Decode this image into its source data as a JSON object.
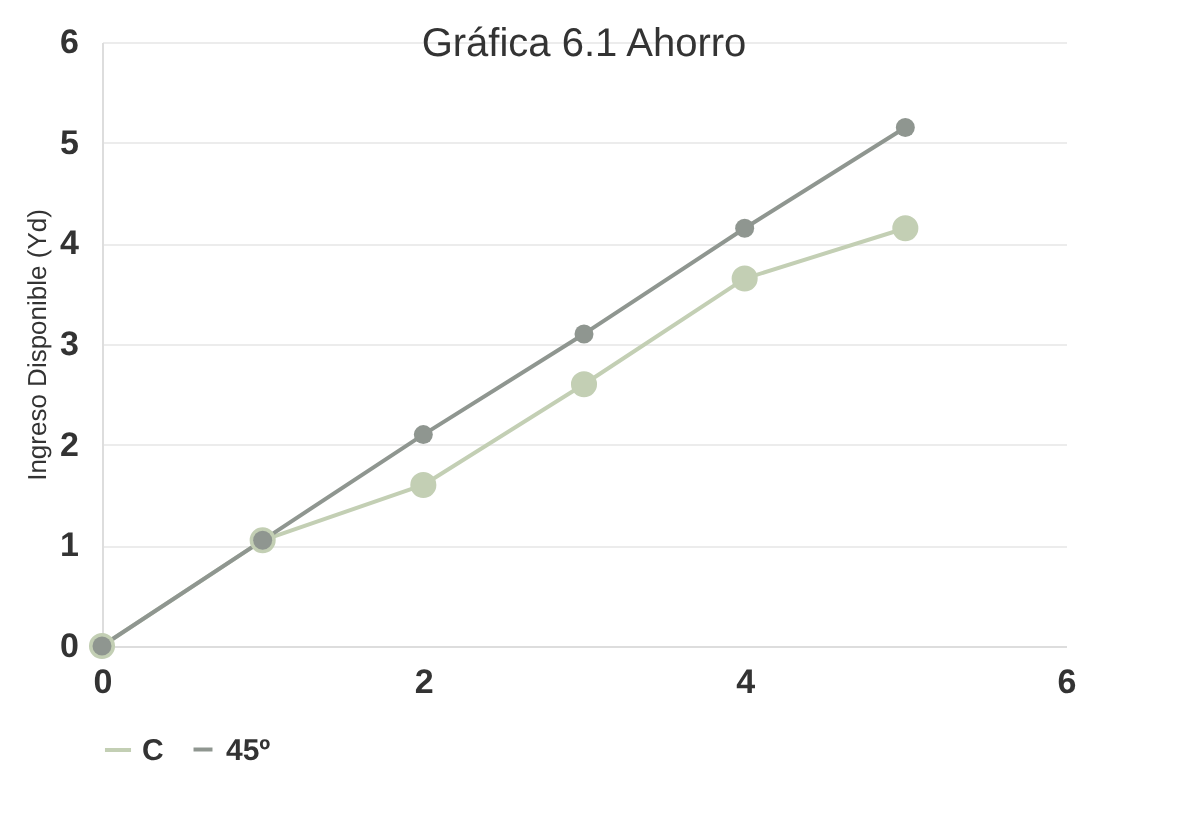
{
  "chart_data": {
    "type": "line",
    "title": "Gráfica  6.1 Ahorro",
    "ylabel": "Ingreso Disponible (Yd)",
    "x": [
      0,
      1,
      2,
      3,
      4,
      5
    ],
    "series": [
      {
        "name": "C",
        "color": "#c3cfb4",
        "values": [
          0,
          1.05,
          1.6,
          2.6,
          3.65,
          4.15
        ]
      },
      {
        "name": "45º",
        "color": "#8f9690",
        "values": [
          0,
          1.05,
          2.1,
          3.1,
          4.15,
          5.15
        ]
      }
    ],
    "xlim": [
      0,
      6
    ],
    "xticks": [
      0,
      2,
      4,
      6
    ],
    "ylim": [
      0,
      6
    ],
    "yticks": [
      0,
      1,
      2,
      3,
      4,
      5,
      6
    ],
    "grid": "y",
    "legend": "bottom",
    "marker": "circle",
    "line_style": "solid"
  }
}
